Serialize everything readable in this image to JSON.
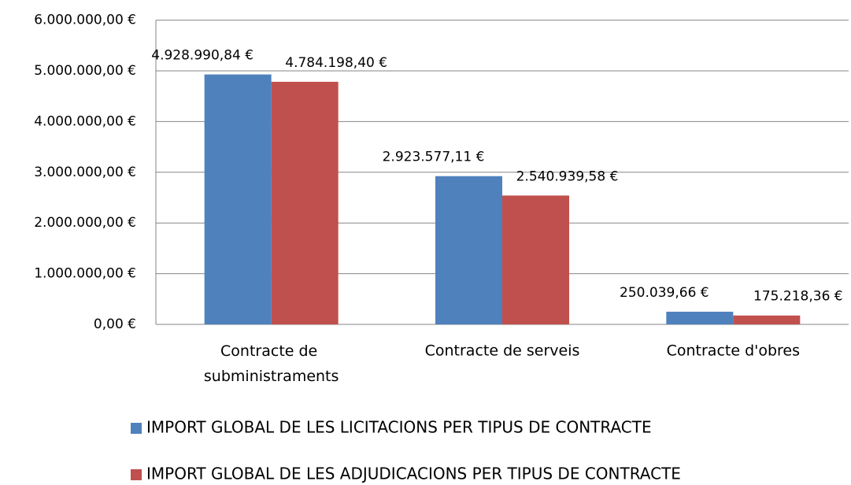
{
  "chart_data": {
    "type": "bar",
    "categories": [
      "Contracte de subministraments",
      "Contracte de serveis",
      "Contracte d'obres"
    ],
    "series": [
      {
        "name": "IMPORT GLOBAL DE LES LICITACIONS PER TIPUS DE CONTRACTE",
        "color": "#4f81bd",
        "values": [
          4928990.84,
          2923577.11,
          250039.66
        ],
        "value_labels": [
          "4.928.990,84 €",
          "2.923.577,11 €",
          "250.039,66 €"
        ]
      },
      {
        "name": "IMPORT GLOBAL DE LES ADJUDICACIONS PER TIPUS DE CONTRACTE",
        "color": "#c0504d",
        "values": [
          4784198.4,
          2540939.58,
          175218.36
        ],
        "value_labels": [
          "4.784.198,40 €",
          "2.540.939,58 €",
          "175.218,36 €"
        ]
      }
    ],
    "ylim": [
      0,
      6000000
    ],
    "yticks": [
      {
        "value": 0,
        "label": "0,00 €"
      },
      {
        "value": 1000000,
        "label": "1.000.000,00 €"
      },
      {
        "value": 2000000,
        "label": "2.000.000,00 €"
      },
      {
        "value": 3000000,
        "label": "3.000.000,00 €"
      },
      {
        "value": 4000000,
        "label": "4.000.000,00 €"
      },
      {
        "value": 5000000,
        "label": "5.000.000,00 €"
      },
      {
        "value": 6000000,
        "label": "6.000.000,00 €"
      }
    ],
    "grid": true,
    "legend": "bottom"
  }
}
